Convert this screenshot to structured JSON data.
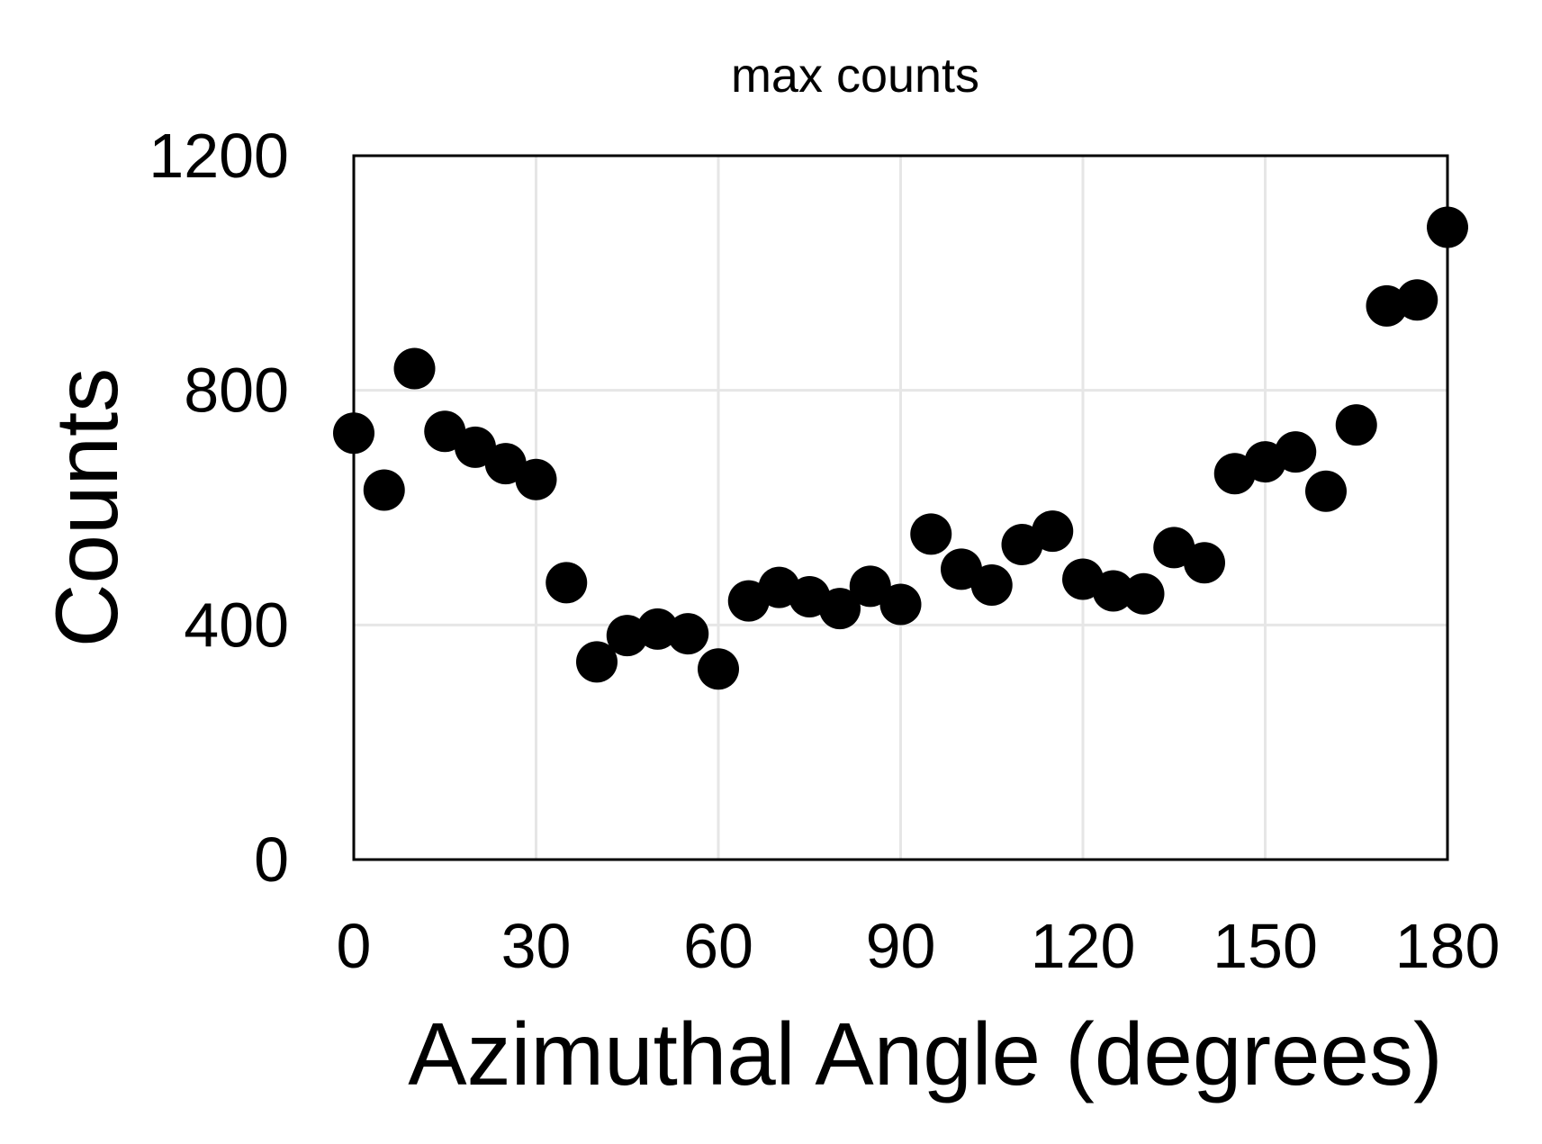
{
  "chart_data": {
    "type": "scatter",
    "title": "max counts",
    "xlabel": "Azimuthal Angle (degrees)",
    "ylabel": "Counts",
    "xlim": [
      0,
      180
    ],
    "ylim": [
      0,
      1200
    ],
    "xticks": [
      0,
      30,
      60,
      90,
      120,
      150,
      180
    ],
    "yticks": [
      0,
      400,
      800,
      1200
    ],
    "xtick_labels": [
      "0",
      "30",
      "60",
      "90",
      "120",
      "150",
      "180"
    ],
    "ytick_labels": [
      "0",
      "400",
      "800",
      "1200"
    ],
    "grid": true,
    "legend": "none",
    "marker_color": "#000000",
    "series": [
      {
        "x": [
          0,
          5,
          10,
          15,
          20,
          25,
          30,
          35,
          40,
          45,
          50,
          55,
          60,
          65,
          70,
          75,
          80,
          85,
          90,
          95,
          100,
          105,
          110,
          115,
          120,
          125,
          130,
          135,
          140,
          145,
          150,
          155,
          160,
          165,
          170,
          175,
          180
        ],
        "y": [
          727,
          630,
          837,
          730,
          703,
          675,
          648,
          472,
          337,
          382,
          393,
          385,
          325,
          441,
          464,
          448,
          428,
          466,
          435,
          555,
          495,
          468,
          537,
          560,
          478,
          458,
          453,
          532,
          506,
          658,
          678,
          695,
          628,
          741,
          944,
          954,
          1078
        ]
      }
    ]
  }
}
